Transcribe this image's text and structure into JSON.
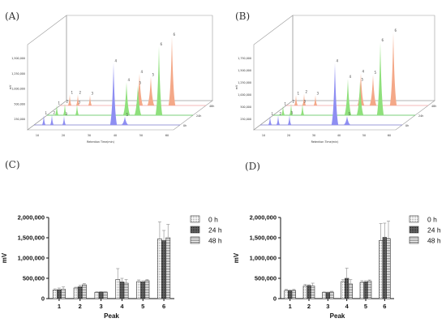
{
  "panels": {
    "A": "(A)",
    "B": "(B)",
    "C": "(C)",
    "D": "(D)"
  },
  "colors": {
    "trace_0h": "#f4a888",
    "trace_24h": "#8fe07c",
    "trace_48h": "#8e8ef2",
    "baseline_0h": "#f0a0a0",
    "baseline_24h": "#4fbf4f",
    "baseline_48h": "#7a7acc",
    "frame": "#9a9a9a"
  },
  "chromatograms": [
    {
      "panel": "A",
      "ylabel": "mV",
      "xlabel": "Retention Time(min)",
      "x_ticks": [
        "10",
        "20",
        "30",
        "40",
        "50",
        "60"
      ],
      "y_ticks": [
        "250,000",
        "500,000",
        "1,000,000",
        "1,250,000",
        "1,500,000"
      ],
      "depth_ticks": [
        "0h",
        "24h",
        "48h"
      ],
      "peak_ids": [
        "1",
        "2",
        "3",
        "4",
        "5",
        "6"
      ],
      "traces": [
        {
          "time": "0h",
          "heights": [
            0.16,
            0.16,
            0.15,
            0.46,
            0.42,
            1.0
          ]
        },
        {
          "time": "24h",
          "heights": [
            0.15,
            0.17,
            0.16,
            0.48,
            0.44,
            1.0
          ]
        },
        {
          "time": "48h",
          "heights": [
            0.14,
            0.15,
            0.13,
            0.9,
            0.12,
            0.0
          ]
        }
      ]
    },
    {
      "panel": "B",
      "ylabel": "mV",
      "xlabel": "Retention Time(min)",
      "x_ticks": [
        "10",
        "20",
        "30",
        "40",
        "50",
        "60"
      ],
      "y_ticks": [
        "250,000",
        "500,000",
        "1,000,000",
        "1,250,000",
        "1,500,000",
        "1,750,000"
      ],
      "depth_ticks": [
        "0h",
        "24h",
        "48h"
      ],
      "peak_ids": [
        "1",
        "2",
        "3",
        "4",
        "5",
        "6"
      ],
      "traces": [
        {
          "time": "0h",
          "heights": [
            0.14,
            0.16,
            0.14,
            0.44,
            0.42,
            1.0
          ]
        },
        {
          "time": "24h",
          "heights": [
            0.13,
            0.16,
            0.16,
            0.5,
            0.46,
            1.0
          ]
        },
        {
          "time": "48h",
          "heights": [
            0.12,
            0.13,
            0.14,
            0.85,
            0.12,
            0.0
          ]
        }
      ]
    }
  ],
  "chart_data": [
    {
      "panel": "C",
      "type": "bar",
      "xlabel": "Peak",
      "ylabel": "mV",
      "categories": [
        "1",
        "2",
        "3",
        "4",
        "5",
        "6"
      ],
      "ylim": [
        0,
        2000000
      ],
      "y_ticks": [
        "0",
        "500,000",
        "1,000,000",
        "1,500,000",
        "2,000,000"
      ],
      "legend_position": "top-right",
      "series": [
        {
          "name": "0 h",
          "values": [
            210000,
            260000,
            155000,
            470000,
            420000,
            1470000
          ],
          "errors": [
            30000,
            20000,
            15000,
            270000,
            40000,
            420000
          ]
        },
        {
          "name": "24 h",
          "values": [
            220000,
            290000,
            160000,
            410000,
            410000,
            1430000
          ],
          "errors": [
            40000,
            40000,
            15000,
            90000,
            30000,
            250000
          ]
        },
        {
          "name": "48 h",
          "values": [
            230000,
            340000,
            160000,
            380000,
            440000,
            1500000
          ],
          "errors": [
            60000,
            30000,
            10000,
            90000,
            30000,
            330000
          ]
        }
      ]
    },
    {
      "panel": "D",
      "type": "bar",
      "xlabel": "Peak",
      "ylabel": "mV",
      "categories": [
        "1",
        "2",
        "3",
        "4",
        "5",
        "6"
      ],
      "ylim": [
        0,
        2000000
      ],
      "y_ticks": [
        "0",
        "500,000",
        "1,000,000",
        "1,500,000",
        "2,000,000"
      ],
      "legend_position": "top-right",
      "series": [
        {
          "name": "0 h",
          "values": [
            200000,
            310000,
            150000,
            420000,
            400000,
            1430000
          ],
          "errors": [
            30000,
            40000,
            15000,
            50000,
            40000,
            420000
          ]
        },
        {
          "name": "24 h",
          "values": [
            195000,
            320000,
            150000,
            500000,
            410000,
            1510000
          ],
          "errors": [
            20000,
            20000,
            10000,
            250000,
            30000,
            350000
          ]
        },
        {
          "name": "48 h",
          "values": [
            200000,
            310000,
            160000,
            360000,
            430000,
            1480000
          ],
          "errors": [
            30000,
            70000,
            20000,
            110000,
            30000,
            430000
          ]
        }
      ]
    }
  ]
}
